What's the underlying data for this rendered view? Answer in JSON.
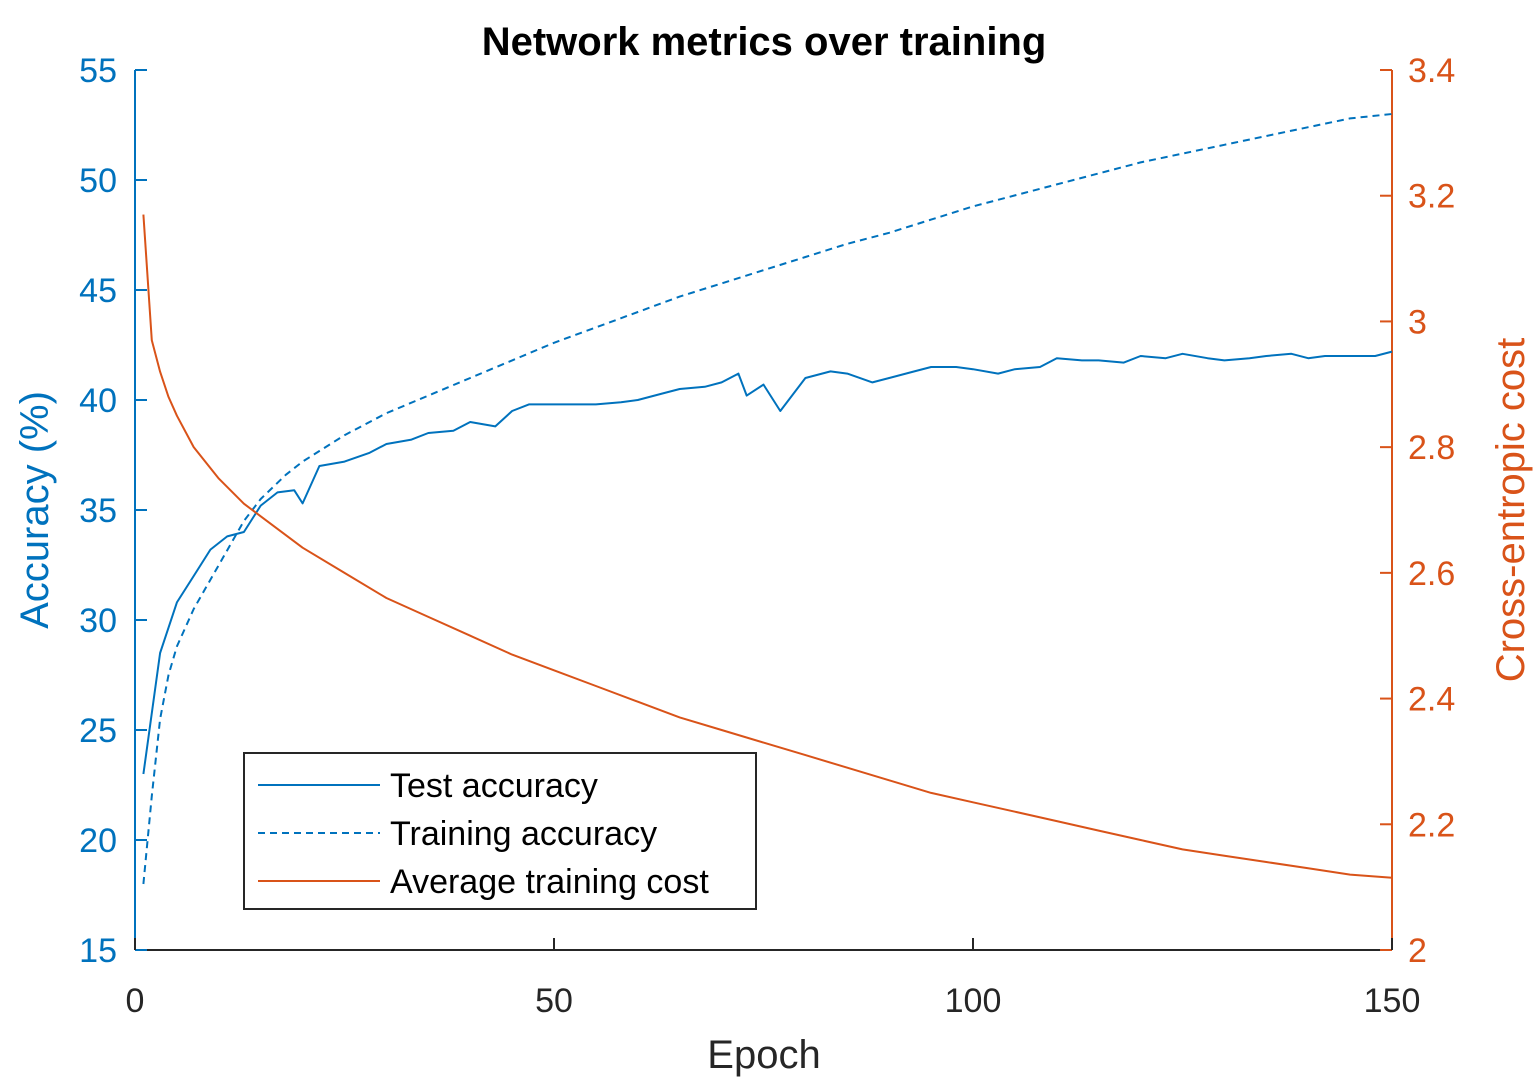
{
  "chart_data": {
    "type": "line",
    "title": "Network metrics over training",
    "xlabel": "Epoch",
    "ylabel_left": "Accuracy (%)",
    "ylabel_right": "Cross-entropic cost",
    "xlim": [
      0,
      150
    ],
    "ylim_left": [
      15,
      55
    ],
    "ylim_right": [
      2,
      3.4
    ],
    "x_ticks": [
      "0",
      "50",
      "100",
      "150"
    ],
    "y_ticks_left": [
      "15",
      "20",
      "25",
      "30",
      "35",
      "40",
      "45",
      "50",
      "55"
    ],
    "y_ticks_right": [
      "2",
      "2.2",
      "2.4",
      "2.6",
      "2.8",
      "3",
      "3.2",
      "3.4"
    ],
    "grid": false,
    "legend_position": "bottom-left",
    "colors": {
      "accuracy_axis": "#0072BD",
      "cost_axis": "#D95319"
    },
    "series": [
      {
        "name": "Test accuracy",
        "axis": "left",
        "style": "solid",
        "color": "#0072BD",
        "x": [
          1,
          3,
          5,
          7,
          9,
          11,
          13,
          15,
          17,
          19,
          20,
          22,
          25,
          28,
          30,
          33,
          35,
          38,
          40,
          43,
          45,
          47,
          50,
          52,
          55,
          58,
          60,
          63,
          65,
          68,
          70,
          72,
          73,
          75,
          77,
          80,
          83,
          85,
          88,
          90,
          93,
          95,
          98,
          100,
          103,
          105,
          108,
          110,
          113,
          115,
          118,
          120,
          123,
          125,
          128,
          130,
          133,
          135,
          138,
          140,
          142,
          145,
          148,
          150
        ],
        "y": [
          23.0,
          28.5,
          30.8,
          32.0,
          33.2,
          33.8,
          34.0,
          35.2,
          35.8,
          35.9,
          35.3,
          37.0,
          37.2,
          37.6,
          38.0,
          38.2,
          38.5,
          38.6,
          39.0,
          38.8,
          39.5,
          39.8,
          39.8,
          39.8,
          39.8,
          39.9,
          40.0,
          40.3,
          40.5,
          40.6,
          40.8,
          41.2,
          40.2,
          40.7,
          39.5,
          41.0,
          41.3,
          41.2,
          40.8,
          41.0,
          41.3,
          41.5,
          41.5,
          41.4,
          41.2,
          41.4,
          41.5,
          41.9,
          41.8,
          41.8,
          41.7,
          42.0,
          41.9,
          42.1,
          41.9,
          41.8,
          41.9,
          42.0,
          42.1,
          41.9,
          42.0,
          42.0,
          42.0,
          42.2
        ]
      },
      {
        "name": "Training accuracy",
        "axis": "left",
        "style": "dashed",
        "color": "#0072BD",
        "x": [
          1,
          2,
          3,
          4,
          5,
          7,
          10,
          13,
          15,
          18,
          20,
          25,
          30,
          35,
          40,
          45,
          50,
          55,
          60,
          65,
          70,
          75,
          80,
          85,
          90,
          95,
          100,
          105,
          110,
          115,
          120,
          125,
          130,
          135,
          140,
          145,
          150
        ],
        "y": [
          18.0,
          22.0,
          25.5,
          27.5,
          28.8,
          30.5,
          32.5,
          34.5,
          35.5,
          36.6,
          37.2,
          38.4,
          39.4,
          40.2,
          41.0,
          41.8,
          42.6,
          43.3,
          44.0,
          44.7,
          45.3,
          45.9,
          46.5,
          47.1,
          47.6,
          48.2,
          48.8,
          49.3,
          49.8,
          50.3,
          50.8,
          51.2,
          51.6,
          52.0,
          52.4,
          52.8,
          53.0
        ]
      },
      {
        "name": "Average training cost",
        "axis": "right",
        "style": "solid",
        "color": "#D95319",
        "x": [
          1,
          2,
          3,
          4,
          5,
          7,
          10,
          13,
          15,
          20,
          25,
          30,
          35,
          40,
          45,
          50,
          55,
          60,
          65,
          70,
          75,
          80,
          85,
          90,
          95,
          100,
          105,
          110,
          115,
          120,
          125,
          130,
          135,
          140,
          145,
          150
        ],
        "y": [
          3.17,
          2.97,
          2.92,
          2.88,
          2.85,
          2.8,
          2.75,
          2.71,
          2.69,
          2.64,
          2.6,
          2.56,
          2.53,
          2.5,
          2.47,
          2.445,
          2.42,
          2.395,
          2.37,
          2.35,
          2.33,
          2.31,
          2.29,
          2.27,
          2.25,
          2.235,
          2.22,
          2.205,
          2.19,
          2.175,
          2.16,
          2.15,
          2.14,
          2.13,
          2.12,
          2.115
        ]
      }
    ]
  }
}
